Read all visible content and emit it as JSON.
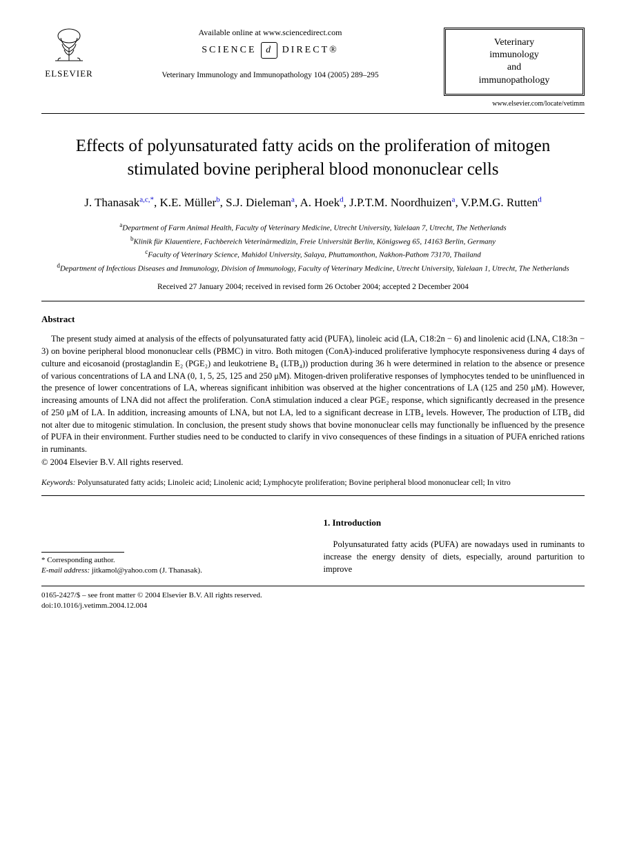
{
  "header": {
    "publisher": "ELSEVIER",
    "available_online": "Available online at www.sciencedirect.com",
    "science_direct_left": "SCIENCE",
    "science_direct_right": "DIRECT®",
    "citation": "Veterinary Immunology and Immunopathology 104 (2005) 289–295",
    "journal_box_line1": "Veterinary",
    "journal_box_line2": "immunology",
    "journal_box_line3": "and",
    "journal_box_line4": "immunopathology",
    "journal_url": "www.elsevier.com/locate/vetimm"
  },
  "title": "Effects of polyunsaturated fatty acids on the proliferation of mitogen stimulated bovine peripheral blood mononuclear cells",
  "authors_html": "J. Thanasak<sup>a,c,*</sup>, K.E. Müller<sup>b</sup>, S.J. Dieleman<sup>a</sup>, A. Hoek<sup>d</sup>, J.P.T.M. Noordhuizen<sup>a</sup>, V.P.M.G. Rutten<sup>d</sup>",
  "affiliations": {
    "a": "Department of Farm Animal Health, Faculty of Veterinary Medicine, Utrecht University, Yalelaan 7, Utrecht, The Netherlands",
    "b": "Klinik für Klauentiere, Fachbereich Veterinärmedizin, Freie Universität Berlin, Königsweg 65, 14163 Berlin, Germany",
    "c": "Faculty of Veterinary Science, Mahidol University, Salaya, Phuttamonthon, Nakhon-Pathom 73170, Thailand",
    "d": "Department of Infectious Diseases and Immunology, Division of Immunology, Faculty of Veterinary Medicine, Utrecht University, Yalelaan 1, Utrecht, The Netherlands"
  },
  "dates": "Received 27 January 2004; received in revised form 26 October 2004; accepted 2 December 2004",
  "abstract": {
    "heading": "Abstract",
    "body": "The present study aimed at analysis of the effects of polyunsaturated fatty acid (PUFA), linoleic acid (LA, C18:2n − 6) and linolenic acid (LNA, C18:3n − 3) on bovine peripheral blood mononuclear cells (PBMC) in vitro. Both mitogen (ConA)-induced proliferative lymphocyte responsiveness during 4 days of culture and eicosanoid (prostaglandin E₂ (PGE₂) and leukotriene B₄ (LTB₄)) production during 36 h were determined in relation to the absence or presence of various concentrations of LA and LNA (0, 1, 5, 25, 125 and 250 μM). Mitogen-driven proliferative responses of lymphocytes tended to be uninfluenced in the presence of lower concentrations of LA, whereas significant inhibition was observed at the higher concentrations of LA (125 and 250 μM). However, increasing amounts of LNA did not affect the proliferation. ConA stimulation induced a clear PGE₂ response, which significantly decreased in the presence of 250 μM of LA. In addition, increasing amounts of LNA, but not LA, led to a significant decrease in LTB₄ levels. However, The production of LTB₄ did not alter due to mitogenic stimulation. In conclusion, the present study shows that bovine mononuclear cells may functionally be influenced by the presence of PUFA in their environment. Further studies need to be conducted to clarify in vivo consequences of these findings in a situation of PUFA enriched rations in ruminants.",
    "copyright": "© 2004 Elsevier B.V. All rights reserved."
  },
  "keywords": {
    "label": "Keywords:",
    "text": "Polyunsaturated fatty acids; Linoleic acid; Linolenic acid; Lymphocyte proliferation; Bovine peripheral blood mononuclear cell; In vitro"
  },
  "footnote": {
    "corr": "* Corresponding author.",
    "email_label": "E-mail address:",
    "email": "jitkamol@yahoo.com (J. Thanasak)."
  },
  "introduction": {
    "heading": "1. Introduction",
    "body": "Polyunsaturated fatty acids (PUFA) are nowadays used in ruminants to increase the energy density of diets, especially, around parturition to improve"
  },
  "footer": {
    "line1": "0165-2427/$ – see front matter © 2004 Elsevier B.V. All rights reserved.",
    "line2": "doi:10.1016/j.vetimm.2004.12.004"
  }
}
